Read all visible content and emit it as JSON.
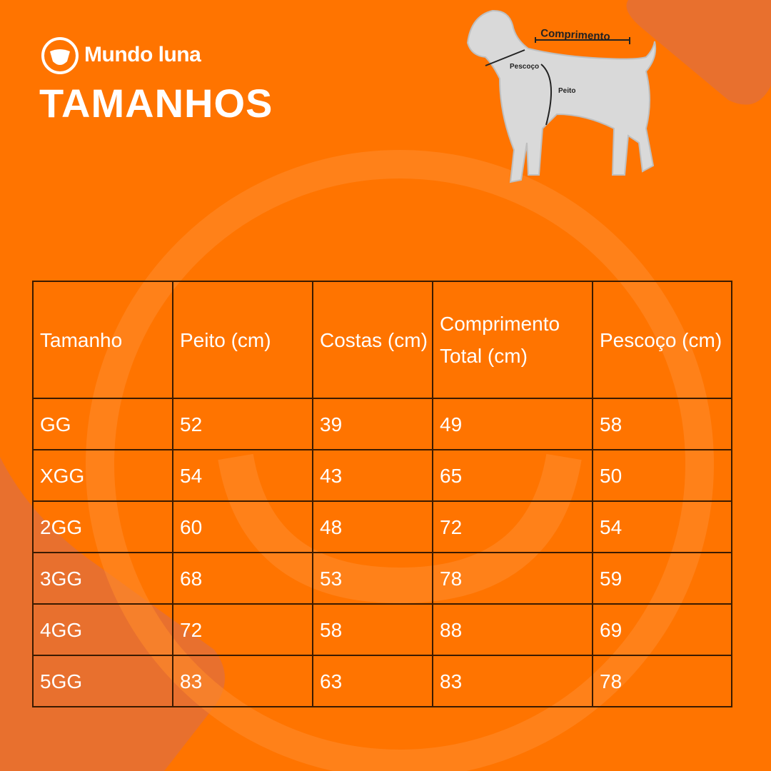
{
  "brand": "Mundo luna",
  "title": "TAMANHOS",
  "diagram": {
    "labels": {
      "length": "Comprimento",
      "neck": "Pescoço",
      "chest": "Peito"
    }
  },
  "table": {
    "header": [
      "Tamanho",
      "Peito (cm)",
      "Costas (cm)",
      "Comprimento Total (cm)",
      "Pescoço (cm)"
    ],
    "rows": [
      [
        "GG",
        52,
        39,
        49,
        58
      ],
      [
        "XGG",
        54,
        43,
        65,
        50
      ],
      [
        "2GG",
        60,
        48,
        72,
        54
      ],
      [
        "3GG",
        68,
        53,
        78,
        59
      ],
      [
        "4GG",
        72,
        58,
        88,
        69
      ],
      [
        "5GG",
        83,
        63,
        83,
        78
      ]
    ]
  }
}
